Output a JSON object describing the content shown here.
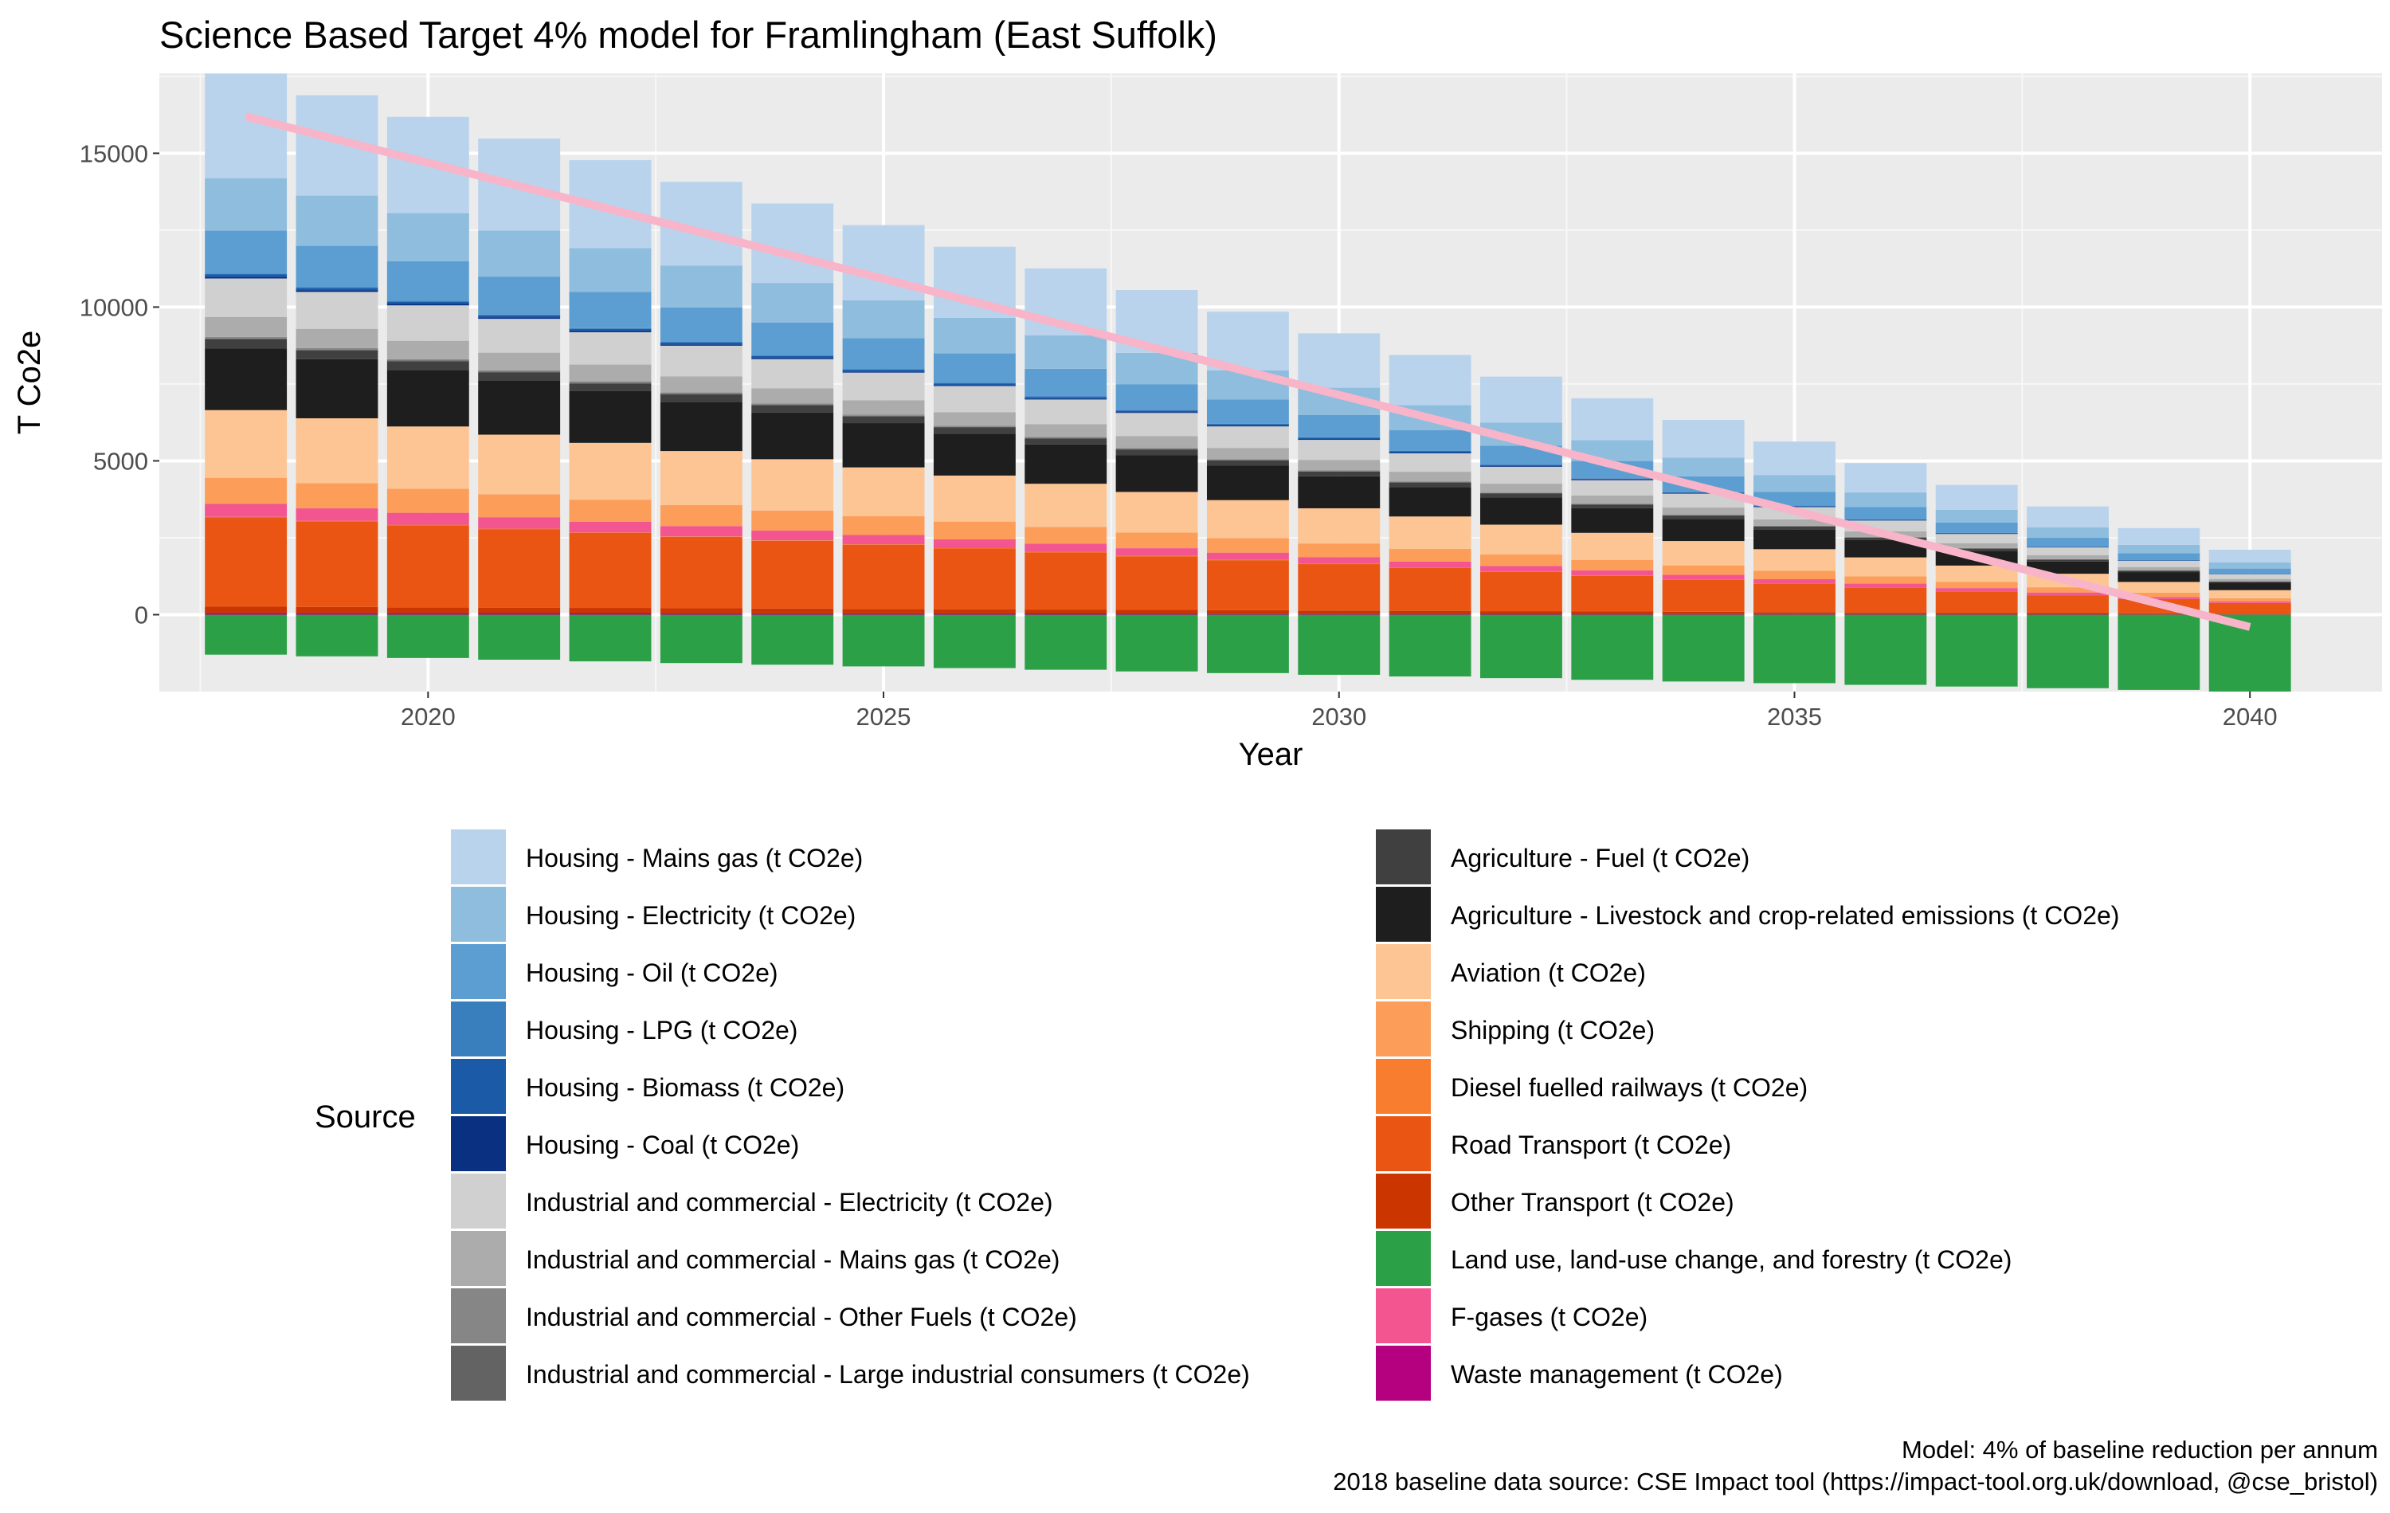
{
  "chart_data": {
    "type": "bar",
    "stacked": true,
    "title": "Science Based Target 4% model for Framlingham (East Suffolk)",
    "xlabel": "Year",
    "ylabel": "T Co2e",
    "x": [
      2018,
      2019,
      2020,
      2021,
      2022,
      2023,
      2024,
      2025,
      2026,
      2027,
      2028,
      2029,
      2030,
      2031,
      2032,
      2033,
      2034,
      2035,
      2036,
      2037,
      2038,
      2039,
      2040
    ],
    "xticks": [
      2020,
      2025,
      2030,
      2035,
      2040
    ],
    "xlim": [
      2017.05,
      2041.45
    ],
    "yticks": [
      0,
      5000,
      10000,
      15000
    ],
    "ylim": [
      -2500,
      17600
    ],
    "grid": true,
    "legend_title": "Source",
    "legend_position": "bottom",
    "series": [
      {
        "name": "Land use, land-use change, and forestry (t CO2e)",
        "color": "#2ca047",
        "baseline": -1300,
        "end": -2500
      },
      {
        "name": "Waste management (t CO2e)",
        "color": "#b5007f",
        "baseline": 60
      },
      {
        "name": "Other Transport (t CO2e)",
        "color": "#cb3500",
        "baseline": 200
      },
      {
        "name": "Road Transport (t CO2e)",
        "color": "#ea5513",
        "baseline": 2900
      },
      {
        "name": "Diesel fuelled railways (t CO2e)",
        "color": "#f87d2e",
        "baseline": 20
      },
      {
        "name": "F-gases (t CO2e)",
        "color": "#f2558f",
        "baseline": 420
      },
      {
        "name": "Shipping (t CO2e)",
        "color": "#fc9e59",
        "baseline": 850
      },
      {
        "name": "Aviation (t CO2e)",
        "color": "#fdc594",
        "baseline": 2200
      },
      {
        "name": "Agriculture - Livestock and crop-related emissions (t CO2e)",
        "color": "#1e1e1e",
        "baseline": 2000
      },
      {
        "name": "Agriculture - Fuel (t CO2e)",
        "color": "#404040",
        "baseline": 300
      },
      {
        "name": "Industrial and commercial - Large industrial consumers (t CO2e)",
        "color": "#636363",
        "baseline": 30
      },
      {
        "name": "Industrial and commercial - Other Fuels (t CO2e)",
        "color": "#868686",
        "baseline": 50
      },
      {
        "name": "Industrial and commercial - Mains gas (t CO2e)",
        "color": "#acacac",
        "baseline": 650
      },
      {
        "name": "Industrial and commercial - Electricity (t CO2e)",
        "color": "#d0d0d0",
        "baseline": 1250
      },
      {
        "name": "Housing - Coal (t CO2e)",
        "color": "#0a3181",
        "baseline": 50
      },
      {
        "name": "Housing - Biomass (t CO2e)",
        "color": "#1a5aa6",
        "baseline": 80
      },
      {
        "name": "Housing - LPG (t CO2e)",
        "color": "#3a7fbd",
        "baseline": 30
      },
      {
        "name": "Housing - Oil (t CO2e)",
        "color": "#5c9ed1",
        "baseline": 1400
      },
      {
        "name": "Housing - Electricity (t CO2e)",
        "color": "#8fbdde",
        "baseline": 1700
      },
      {
        "name": "Housing - Mains gas (t CO2e)",
        "color": "#bad3ed",
        "baseline": 3400
      }
    ],
    "target_line": {
      "color": "#f8b4c8",
      "x": [
        2018,
        2040
      ],
      "y": [
        16200,
        -400
      ]
    },
    "legend_left": [
      {
        "name": "Housing - Mains gas (t CO2e)",
        "color": "#bad3ed"
      },
      {
        "name": "Housing - Electricity (t CO2e)",
        "color": "#8fbdde"
      },
      {
        "name": "Housing - Oil (t CO2e)",
        "color": "#5c9ed1"
      },
      {
        "name": "Housing - LPG (t CO2e)",
        "color": "#3a7fbd"
      },
      {
        "name": "Housing - Biomass (t CO2e)",
        "color": "#1a5aa6"
      },
      {
        "name": "Housing - Coal (t CO2e)",
        "color": "#0a3181"
      },
      {
        "name": "Industrial and commercial - Electricity (t CO2e)",
        "color": "#d0d0d0"
      },
      {
        "name": "Industrial and commercial - Mains gas (t CO2e)",
        "color": "#acacac"
      },
      {
        "name": "Industrial and commercial - Other Fuels (t CO2e)",
        "color": "#868686"
      },
      {
        "name": "Industrial and commercial - Large industrial consumers (t CO2e)",
        "color": "#636363"
      }
    ],
    "legend_right": [
      {
        "name": "Agriculture - Fuel (t CO2e)",
        "color": "#404040"
      },
      {
        "name": "Agriculture - Livestock and crop-related emissions (t CO2e)",
        "color": "#1e1e1e"
      },
      {
        "name": "Aviation (t CO2e)",
        "color": "#fdc594"
      },
      {
        "name": "Shipping (t CO2e)",
        "color": "#fc9e59"
      },
      {
        "name": "Diesel fuelled railways (t CO2e)",
        "color": "#f87d2e"
      },
      {
        "name": "Road Transport (t CO2e)",
        "color": "#ea5513"
      },
      {
        "name": "Other Transport (t CO2e)",
        "color": "#cb3500"
      },
      {
        "name": "Land use, land-use change, and forestry (t CO2e)",
        "color": "#2ca047"
      },
      {
        "name": "F-gases (t CO2e)",
        "color": "#f2558f"
      },
      {
        "name": "Waste management (t CO2e)",
        "color": "#b5007f"
      }
    ],
    "caption": [
      "Model: 4% of baseline reduction per annum",
      "2018 baseline data source: CSE Impact tool (https://impact-tool.org.uk/download, @cse_bristol)"
    ]
  }
}
